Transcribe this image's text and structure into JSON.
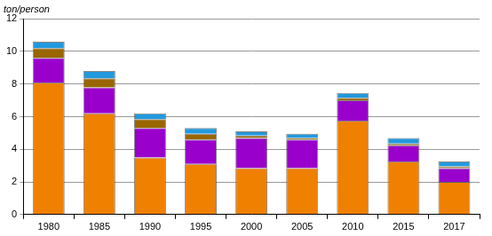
{
  "chart_data": {
    "type": "bar",
    "stacked": true,
    "grid": true,
    "ylabel": "ton/person",
    "categories": [
      "1980",
      "1985",
      "1990",
      "1995",
      "2000",
      "2005",
      "2010",
      "2015",
      "2017"
    ],
    "series": [
      {
        "color": "#f08000",
        "values": [
          8.1,
          6.2,
          3.5,
          3.1,
          2.85,
          2.85,
          5.75,
          3.25,
          2.0
        ]
      },
      {
        "color": "#9900cc",
        "values": [
          1.5,
          1.6,
          1.8,
          1.5,
          1.85,
          1.75,
          1.25,
          1.0,
          0.85
        ]
      },
      {
        "color": "#996600",
        "values": [
          0.6,
          0.55,
          0.55,
          0.35,
          0.15,
          0.1,
          0.15,
          0.1,
          0.1
        ]
      },
      {
        "color": "#2299dd",
        "values": [
          0.4,
          0.45,
          0.35,
          0.35,
          0.25,
          0.25,
          0.3,
          0.35,
          0.3
        ]
      }
    ],
    "ylim": [
      0,
      12
    ],
    "yticks": [
      0,
      2,
      4,
      6,
      8,
      10,
      12
    ]
  }
}
